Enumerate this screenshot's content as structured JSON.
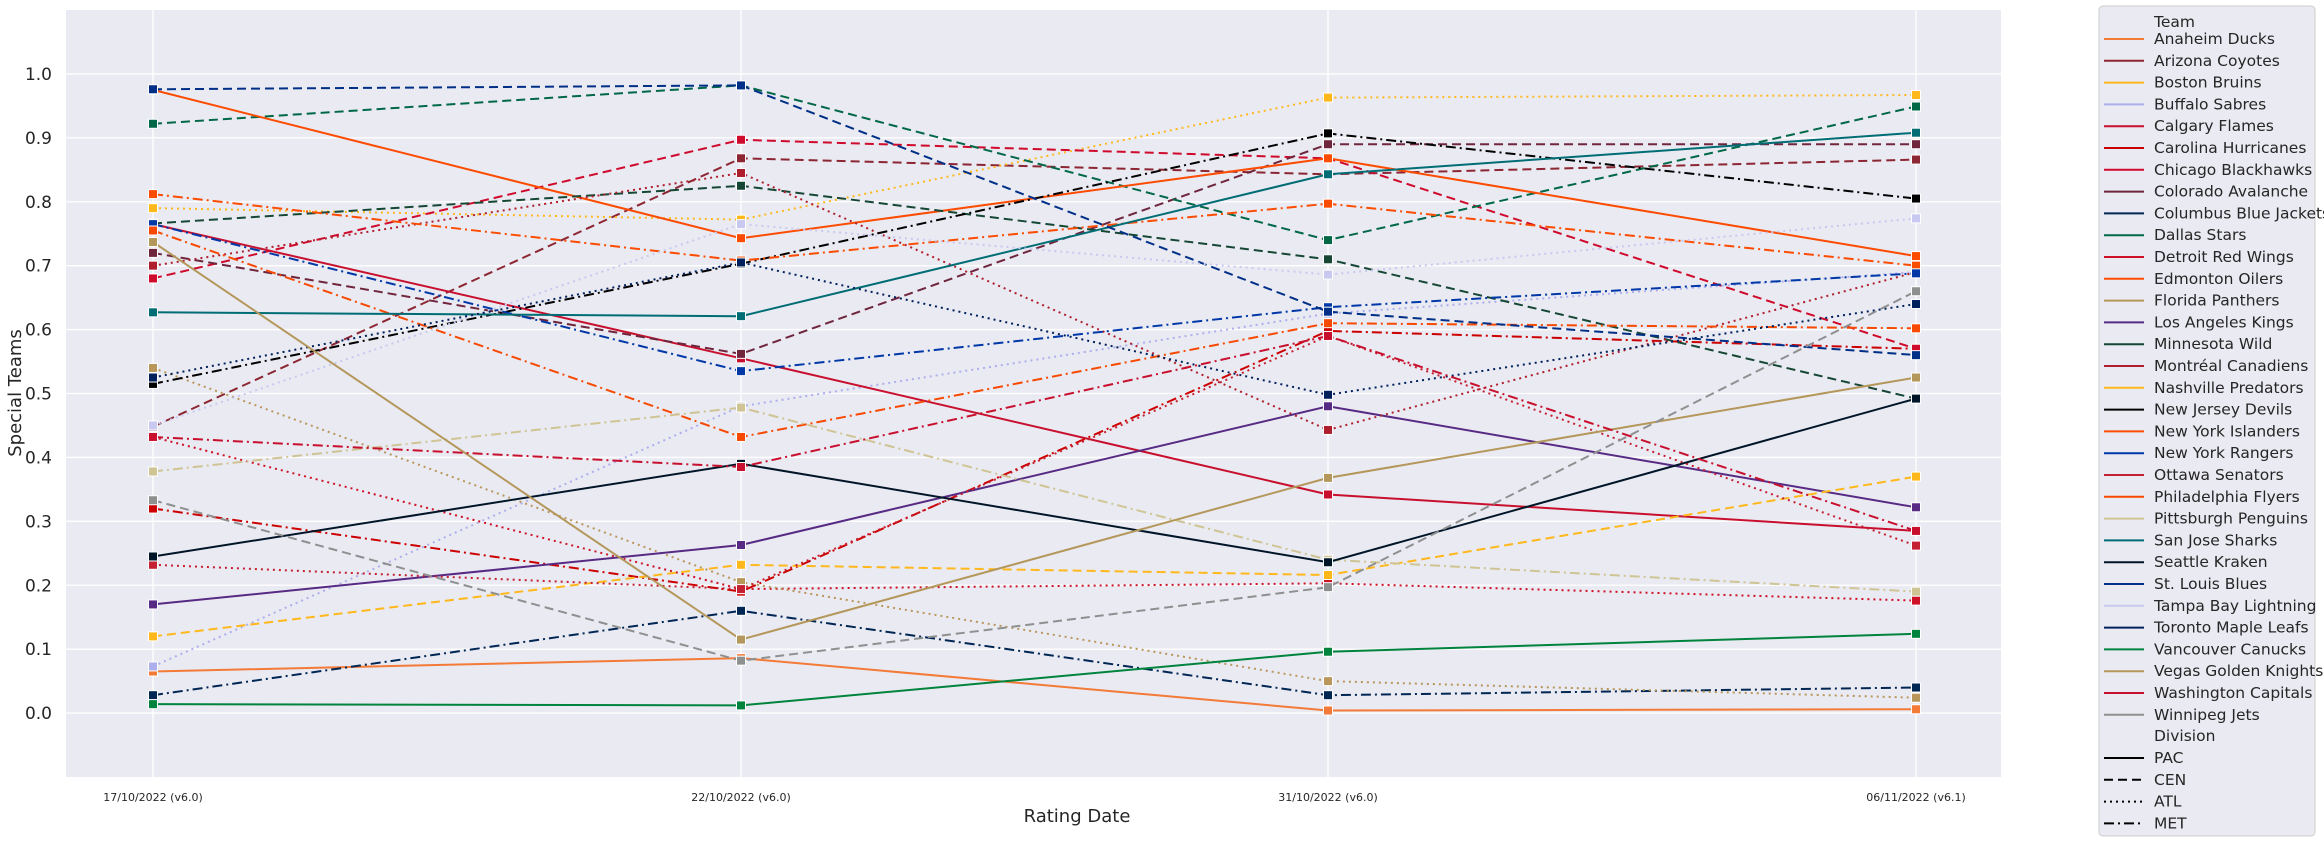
{
  "chart_data": {
    "type": "line",
    "title": "",
    "xlabel": "Rating Date",
    "ylabel": "Special Teams",
    "ylim": [
      -0.1,
      1.1
    ],
    "y_ticks": [
      "0.0",
      "0.1",
      "0.2",
      "0.3",
      "0.4",
      "0.5",
      "0.6",
      "0.7",
      "0.8",
      "0.9",
      "1.0"
    ],
    "grid": true,
    "legend_placement": "outside-right",
    "categories": [
      "17/10/2022 (v6.0)",
      "22/10/2022 (v6.0)",
      "31/10/2022 (v6.0)",
      "06/11/2022 (v6.1)"
    ],
    "legend": {
      "team_title": "Team",
      "division_title": "Division",
      "divisions": [
        {
          "name": "PAC",
          "dash": "solid"
        },
        {
          "name": "CEN",
          "dash": "dashed"
        },
        {
          "name": "ATL",
          "dash": "dotted"
        },
        {
          "name": "MET",
          "dash": "dashdot"
        }
      ]
    },
    "series": [
      {
        "name": "Anaheim Ducks",
        "color": "#f47a38",
        "division": "PAC",
        "values": [
          0.065,
          0.086,
          0.004,
          0.006
        ]
      },
      {
        "name": "Arizona Coyotes",
        "color": "#8c2633",
        "division": "CEN",
        "values": [
          0.448,
          0.868,
          0.843,
          0.866
        ]
      },
      {
        "name": "Boston Bruins",
        "color": "#ffb81c",
        "division": "ATL",
        "values": [
          0.79,
          0.772,
          0.963,
          0.967
        ]
      },
      {
        "name": "Buffalo Sabres",
        "color": "#adafed",
        "division": "ATL",
        "values": [
          0.073,
          0.48,
          0.625,
          0.69
        ]
      },
      {
        "name": "Calgary Flames",
        "color": "#c8102e",
        "division": "PAC",
        "values": [
          0.765,
          0.555,
          0.342,
          0.285
        ]
      },
      {
        "name": "Carolina Hurricanes",
        "color": "#cc0000",
        "division": "MET",
        "values": [
          0.32,
          0.19,
          0.598,
          0.57
        ]
      },
      {
        "name": "Chicago Blackhawks",
        "color": "#cf0a2c",
        "division": "CEN",
        "values": [
          0.68,
          0.897,
          0.868,
          0.57
        ]
      },
      {
        "name": "Colorado Avalanche",
        "color": "#6f263d",
        "division": "CEN",
        "values": [
          0.72,
          0.562,
          0.89,
          0.89
        ]
      },
      {
        "name": "Columbus Blue Jackets",
        "color": "#002654",
        "division": "MET",
        "values": [
          0.028,
          0.16,
          0.028,
          0.04
        ]
      },
      {
        "name": "Dallas Stars",
        "color": "#006847",
        "division": "CEN",
        "values": [
          0.922,
          0.982,
          0.74,
          0.949
        ]
      },
      {
        "name": "Detroit Red Wings",
        "color": "#ce1126",
        "division": "ATL",
        "values": [
          0.432,
          0.194,
          0.203,
          0.176
        ]
      },
      {
        "name": "Edmonton Oilers",
        "color": "#fc4c02",
        "division": "PAC",
        "values": [
          0.975,
          0.743,
          0.868,
          0.715
        ]
      },
      {
        "name": "Florida Panthers",
        "color": "#b9975b",
        "division": "ATL",
        "values": [
          0.54,
          0.205,
          0.05,
          0.024
        ]
      },
      {
        "name": "Los Angeles Kings",
        "color": "#572a84",
        "division": "PAC",
        "values": [
          0.17,
          0.263,
          0.48,
          0.322
        ]
      },
      {
        "name": "Minnesota Wild",
        "color": "#154734",
        "division": "CEN",
        "values": [
          0.766,
          0.825,
          0.71,
          0.492
        ]
      },
      {
        "name": "Montréal Canadiens",
        "color": "#af1e2d",
        "division": "ATL",
        "values": [
          0.7,
          0.845,
          0.443,
          0.69
        ]
      },
      {
        "name": "Nashville Predators",
        "color": "#ffb81c",
        "division": "CEN",
        "values": [
          0.12,
          0.232,
          0.216,
          0.37
        ]
      },
      {
        "name": "New Jersey Devils",
        "color": "#000000",
        "division": "MET",
        "values": [
          0.515,
          0.703,
          0.907,
          0.805
        ]
      },
      {
        "name": "New York Islanders",
        "color": "#fc4c02",
        "division": "MET",
        "values": [
          0.812,
          0.708,
          0.797,
          0.7
        ]
      },
      {
        "name": "New York Rangers",
        "color": "#0038a8",
        "division": "MET",
        "values": [
          0.765,
          0.535,
          0.635,
          0.688
        ]
      },
      {
        "name": "Ottawa Senators",
        "color": "#c52032",
        "division": "ATL",
        "values": [
          0.232,
          0.194,
          0.59,
          0.262
        ]
      },
      {
        "name": "Philadelphia Flyers",
        "color": "#f74902",
        "division": "MET",
        "values": [
          0.755,
          0.432,
          0.61,
          0.602
        ]
      },
      {
        "name": "Pittsburgh Penguins",
        "color": "#cfc493",
        "division": "MET",
        "values": [
          0.378,
          0.478,
          0.24,
          0.19
        ]
      },
      {
        "name": "San Jose Sharks",
        "color": "#006d75",
        "division": "PAC",
        "values": [
          0.627,
          0.621,
          0.843,
          0.908
        ]
      },
      {
        "name": "Seattle Kraken",
        "color": "#001628",
        "division": "PAC",
        "values": [
          0.245,
          0.39,
          0.236,
          0.492
        ]
      },
      {
        "name": "St. Louis Blues",
        "color": "#002f87",
        "division": "CEN",
        "values": [
          0.976,
          0.982,
          0.628,
          0.56
        ]
      },
      {
        "name": "Tampa Bay Lightning",
        "color": "#c8c8f0",
        "division": "ATL",
        "values": [
          0.45,
          0.765,
          0.686,
          0.774
        ]
      },
      {
        "name": "Toronto Maple Leafs",
        "color": "#00205b",
        "division": "ATL",
        "values": [
          0.525,
          0.705,
          0.498,
          0.64
        ]
      },
      {
        "name": "Vancouver Canucks",
        "color": "#00843d",
        "division": "PAC",
        "values": [
          0.014,
          0.012,
          0.096,
          0.124
        ]
      },
      {
        "name": "Vegas Golden Knights",
        "color": "#b4975a",
        "division": "PAC",
        "values": [
          0.737,
          0.115,
          0.368,
          0.525
        ]
      },
      {
        "name": "Washington Capitals",
        "color": "#c8102e",
        "division": "MET",
        "values": [
          0.432,
          0.385,
          0.59,
          0.285
        ]
      },
      {
        "name": "Winnipeg Jets",
        "color": "#8e9090",
        "division": "CEN",
        "values": [
          0.333,
          0.082,
          0.197,
          0.66
        ]
      }
    ]
  }
}
